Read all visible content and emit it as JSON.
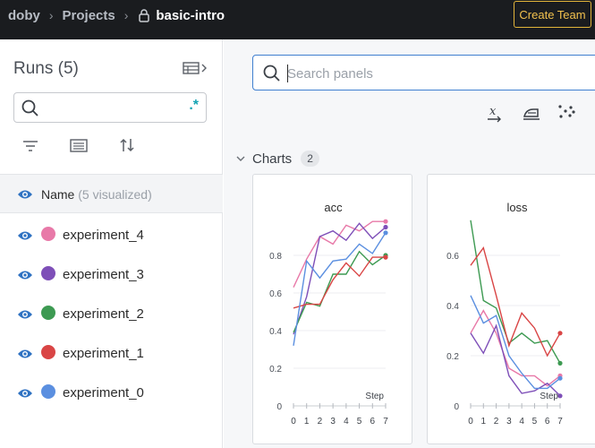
{
  "topbar": {
    "breadcrumb": {
      "entity": "doby",
      "section": "Projects",
      "project": "basic-intro"
    },
    "create_team_label": "Create Team"
  },
  "runs_panel": {
    "title": "Runs (5)",
    "search_value": "",
    "regex_label": ".*",
    "name_header": {
      "label": "Name",
      "count": "(5 visualized)"
    },
    "runs": [
      {
        "name": "experiment_4",
        "color": "#e879a8"
      },
      {
        "name": "experiment_3",
        "color": "#7e4fb8"
      },
      {
        "name": "experiment_2",
        "color": "#3d9a52"
      },
      {
        "name": "experiment_1",
        "color": "#d94545"
      },
      {
        "name": "experiment_0",
        "color": "#5b8fe0"
      }
    ]
  },
  "workspace": {
    "search_placeholder": "Search panels",
    "section": {
      "label": "Charts",
      "count": "2"
    }
  },
  "chart_data": [
    {
      "type": "line",
      "title": "acc",
      "xlabel": "Step",
      "x": [
        0,
        1,
        2,
        3,
        4,
        5,
        6,
        7
      ],
      "xlim": [
        0,
        7
      ],
      "ylim": [
        0,
        1.0
      ],
      "yticks": [
        0,
        0.2,
        0.4,
        0.6,
        0.8
      ],
      "series": [
        {
          "name": "experiment_4",
          "color": "#e879a8",
          "values": [
            0.63,
            0.78,
            0.9,
            0.86,
            0.96,
            0.93,
            0.98,
            0.98
          ]
        },
        {
          "name": "experiment_3",
          "color": "#7e4fb8",
          "values": [
            0.38,
            0.58,
            0.9,
            0.93,
            0.88,
            0.97,
            0.89,
            0.95
          ]
        },
        {
          "name": "experiment_2",
          "color": "#3d9a52",
          "values": [
            0.39,
            0.55,
            0.53,
            0.7,
            0.7,
            0.82,
            0.75,
            0.8
          ]
        },
        {
          "name": "experiment_1",
          "color": "#d94545",
          "values": [
            0.52,
            0.54,
            0.54,
            0.67,
            0.76,
            0.69,
            0.79,
            0.79
          ]
        },
        {
          "name": "experiment_0",
          "color": "#5b8fe0",
          "values": [
            0.32,
            0.77,
            0.68,
            0.77,
            0.78,
            0.86,
            0.81,
            0.92
          ]
        }
      ]
    },
    {
      "type": "line",
      "title": "loss",
      "xlabel": "Step",
      "x": [
        0,
        1,
        2,
        3,
        4,
        5,
        6,
        7
      ],
      "xlim": [
        0,
        7
      ],
      "ylim": [
        0,
        0.75
      ],
      "yticks": [
        0,
        0.2,
        0.4,
        0.6
      ],
      "series": [
        {
          "name": "experiment_4",
          "color": "#e879a8",
          "values": [
            0.29,
            0.38,
            0.29,
            0.15,
            0.12,
            0.12,
            0.08,
            0.12
          ]
        },
        {
          "name": "experiment_3",
          "color": "#7e4fb8",
          "values": [
            0.29,
            0.21,
            0.32,
            0.12,
            0.05,
            0.06,
            0.09,
            0.04
          ]
        },
        {
          "name": "experiment_2",
          "color": "#3d9a52",
          "values": [
            0.74,
            0.42,
            0.39,
            0.25,
            0.29,
            0.25,
            0.26,
            0.17
          ]
        },
        {
          "name": "experiment_1",
          "color": "#d94545",
          "values": [
            0.56,
            0.63,
            0.44,
            0.24,
            0.37,
            0.31,
            0.2,
            0.29
          ]
        },
        {
          "name": "experiment_0",
          "color": "#5b8fe0",
          "values": [
            0.44,
            0.33,
            0.36,
            0.2,
            0.13,
            0.07,
            0.07,
            0.11
          ]
        }
      ]
    }
  ]
}
